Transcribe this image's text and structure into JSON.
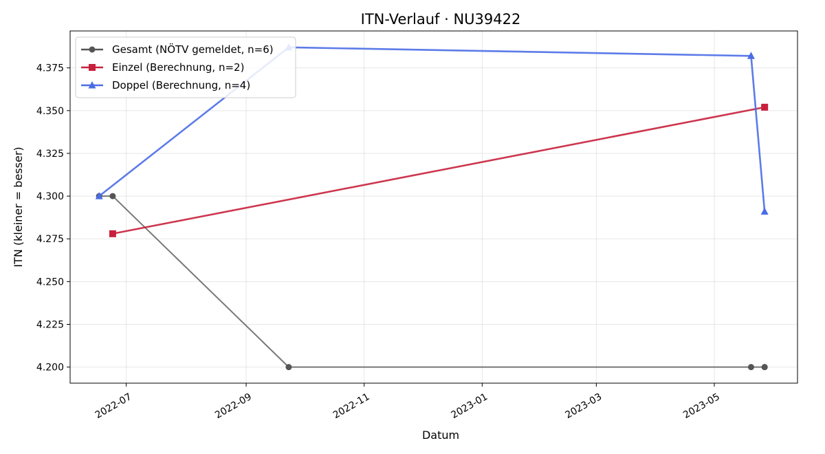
{
  "chart_data": {
    "type": "line",
    "title": "ITN-Verlauf · NU39422",
    "xlabel": "Datum",
    "ylabel": "ITN  (kleiner = besser)",
    "x_range": [
      "2022-06-02",
      "2023-06-13"
    ],
    "ylim": [
      4.1906,
      4.3966
    ],
    "grid": true,
    "legend_position": "top-left",
    "x_ticks": [
      "2022-07-01",
      "2022-09-01",
      "2022-11-01",
      "2023-01-01",
      "2023-03-01",
      "2023-05-01"
    ],
    "x_tick_labels": [
      "2022-07",
      "2022-09",
      "2022-11",
      "2023-01",
      "2023-03",
      "2023-05"
    ],
    "y_ticks": [
      4.2,
      4.225,
      4.25,
      4.275,
      4.3,
      4.325,
      4.35,
      4.375
    ],
    "y_tick_labels": [
      "4.200",
      "4.225",
      "4.250",
      "4.275",
      "4.300",
      "4.325",
      "4.350",
      "4.375"
    ],
    "series": [
      {
        "name": "Gesamt (NÖTV gemeldet, n=6)",
        "color": "#555555",
        "marker": "circle",
        "points": [
          {
            "x": "2022-06-17",
            "y": 4.3
          },
          {
            "x": "2022-06-24",
            "y": 4.3
          },
          {
            "x": "2022-09-23",
            "y": 4.2
          },
          {
            "x": "2023-05-20",
            "y": 4.2
          },
          {
            "x": "2023-05-27",
            "y": 4.2
          },
          {
            "x": "2023-05-27",
            "y": 4.2
          }
        ]
      },
      {
        "name": "Einzel (Berechnung, n=2)",
        "color": "#c8203c",
        "marker": "square",
        "points": [
          {
            "x": "2022-06-24",
            "y": 4.278
          },
          {
            "x": "2023-05-27",
            "y": 4.352
          }
        ]
      },
      {
        "name": "Doppel (Berechnung, n=4)",
        "color": "#4a6de6",
        "marker": "triangle",
        "points": [
          {
            "x": "2022-06-17",
            "y": 4.3
          },
          {
            "x": "2022-09-23",
            "y": 4.387
          },
          {
            "x": "2023-05-20",
            "y": 4.382
          },
          {
            "x": "2023-05-27",
            "y": 4.291
          }
        ]
      }
    ]
  }
}
